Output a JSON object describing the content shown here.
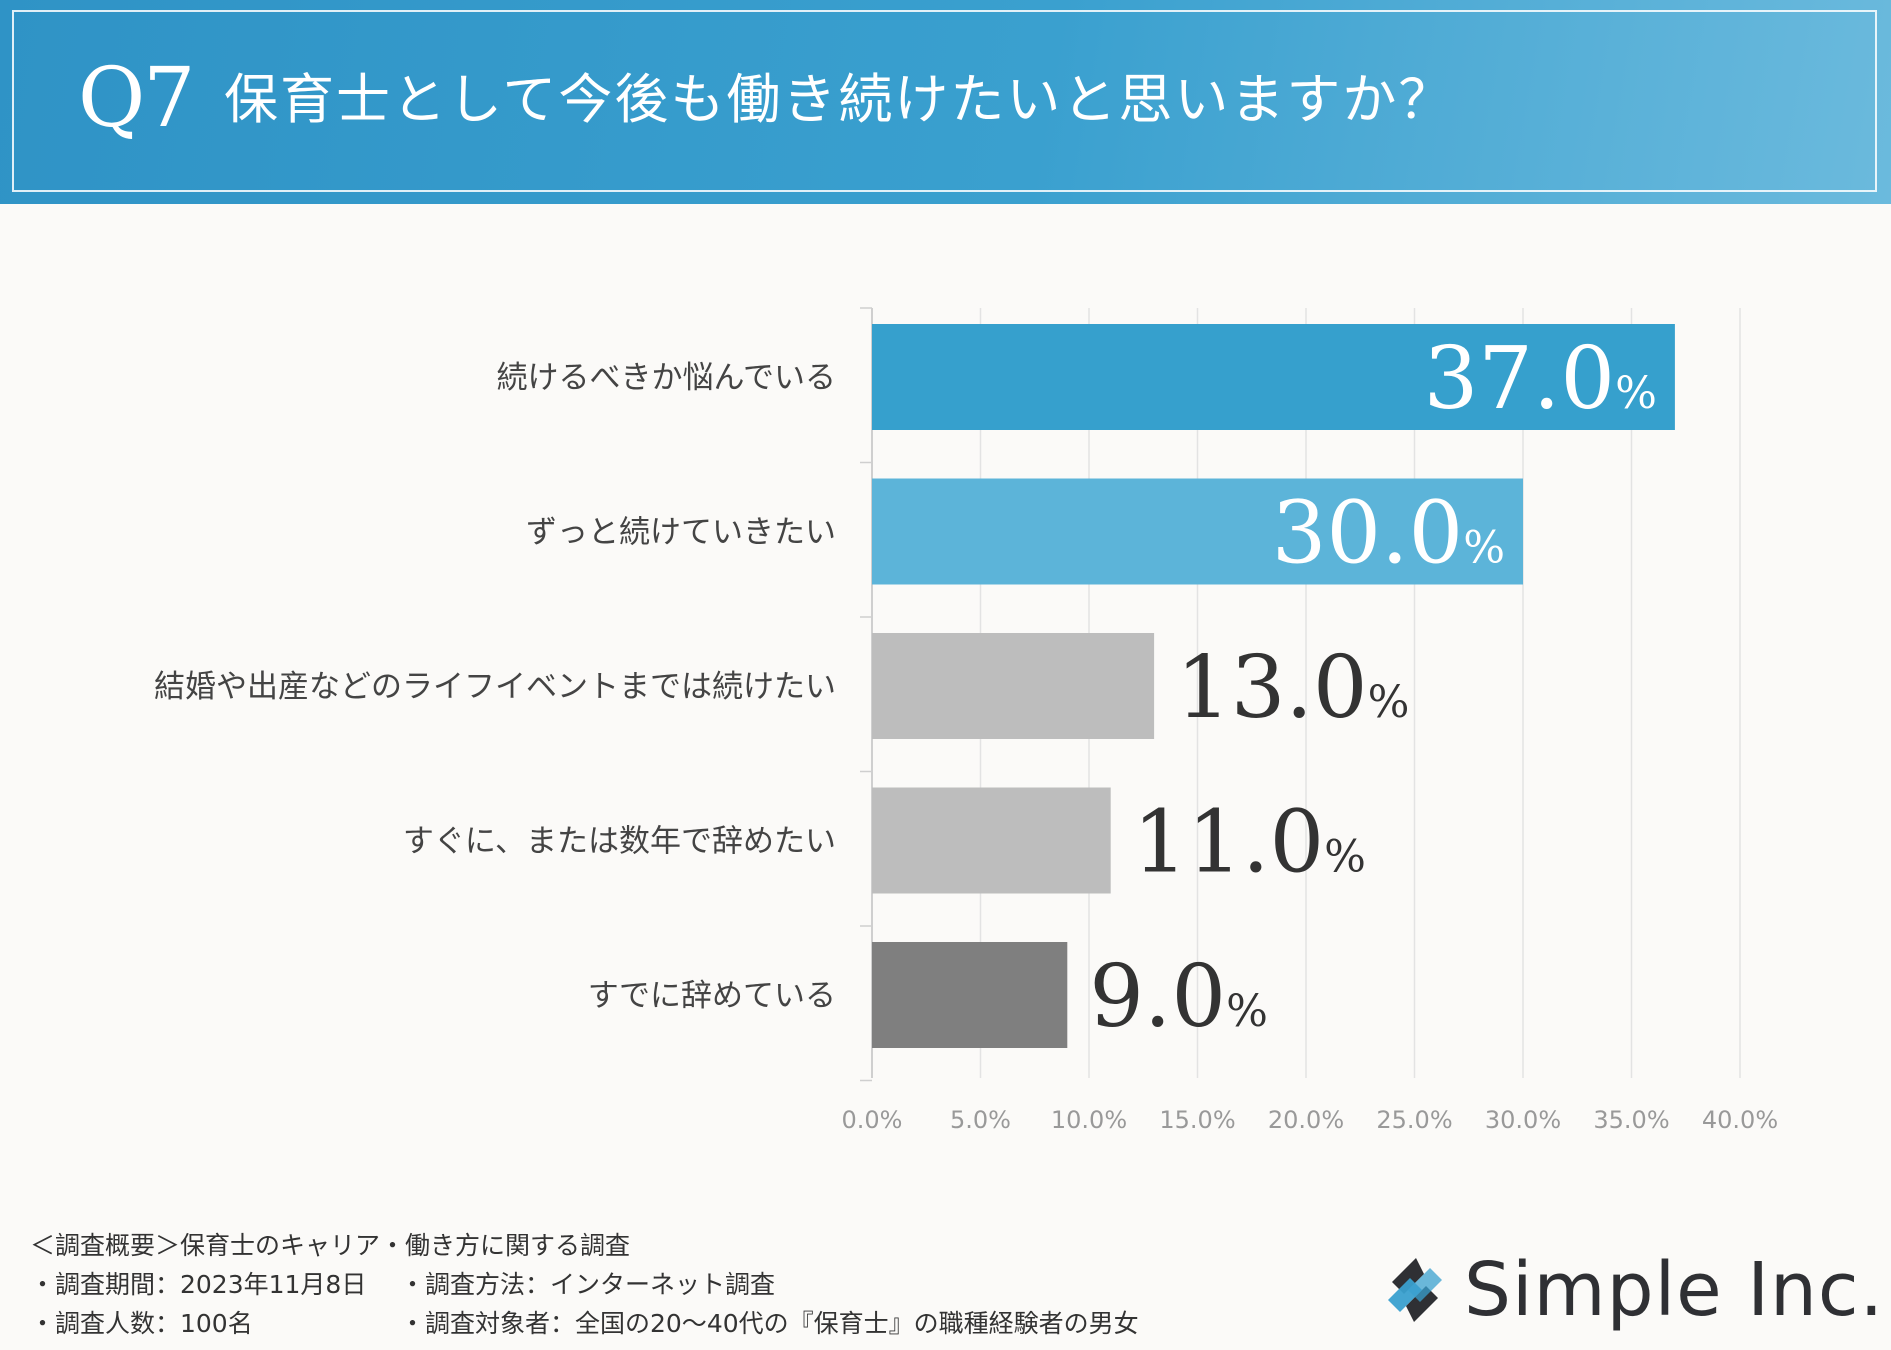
{
  "header": {
    "q_number": "Q7",
    "question": "保育士として今後も働き続けたいと思いますか？"
  },
  "chart_data": {
    "type": "bar",
    "orientation": "horizontal",
    "title": "保育士として今後も働き続けたいと思いますか？",
    "categories": [
      "続けるべきか悩んでいる",
      "ずっと続けていきたい",
      "結婚や出産などのライフイベントまでは続けたい",
      "すぐに、または数年で辞めたい",
      "すでに辞めている"
    ],
    "values": [
      37.0,
      30.0,
      13.0,
      11.0,
      9.0
    ],
    "value_labels": [
      "37.0",
      "30.0",
      "13.0",
      "11.0",
      "9.0"
    ],
    "value_suffix": "%",
    "bar_colors": [
      "#36a0cd",
      "#5cb4d9",
      "#bdbdbd",
      "#bdbdbd",
      "#7f7f7f"
    ],
    "label_colors": [
      "#ffffff",
      "#ffffff",
      "#333333",
      "#333333",
      "#333333"
    ],
    "label_inside": [
      true,
      true,
      false,
      false,
      false
    ],
    "xlim": [
      0,
      40
    ],
    "ticks": [
      0,
      5,
      10,
      15,
      20,
      25,
      30,
      35,
      40
    ],
    "tick_labels": [
      "0.0%",
      "5.0%",
      "10.0%",
      "15.0%",
      "20.0%",
      "25.0%",
      "30.0%",
      "35.0%",
      "40.0%"
    ],
    "grid": true
  },
  "footer": {
    "overview": "＜調査概要＞保育士のキャリア・働き方に関する調査",
    "period": "・調査期間：2023年11月8日",
    "method": "・調査方法：インターネット調査",
    "count": "・調査人数：100名",
    "target": "・調査対象者：全国の20〜40代の『保育士』の職種経験者の男女"
  },
  "brand": {
    "name": "Simple Inc.",
    "logo_icon": "simple-logo-icon"
  }
}
